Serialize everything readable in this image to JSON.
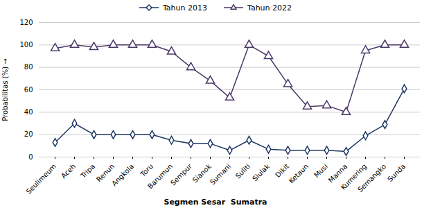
{
  "chart_data": {
    "type": "line",
    "xlabel": "Segmen Sesar  Sumatra",
    "ylabel": "Probabilitas (%)",
    "categories": [
      "Seulimeum",
      "Aceh",
      "Tripa",
      "Renun",
      "Angkola",
      "Toru",
      "Barumun",
      "Sempur",
      "Sianok",
      "Sumani",
      "Suliti",
      "Siulak",
      "Dikit",
      "Ketaun",
      "Musi",
      "Manna",
      "Kumering",
      "Semangko",
      "Sunda"
    ],
    "series": [
      {
        "name": "Tahun 2013",
        "color": "#1F3864",
        "marker": "diamond",
        "values": [
          13,
          30,
          20,
          20,
          20,
          20,
          15,
          12,
          12,
          6,
          15,
          7,
          6,
          6,
          6,
          5,
          19,
          29,
          61
        ]
      },
      {
        "name": "Tahun 2022",
        "color": "#4B3869",
        "marker": "triangle",
        "values": [
          97,
          100,
          98,
          100,
          100,
          100,
          94,
          80,
          68,
          53,
          100,
          90,
          65,
          45,
          46,
          40,
          95,
          100,
          100
        ]
      }
    ],
    "ylim": [
      0,
      120
    ],
    "yticks": [
      0,
      20,
      40,
      60,
      80,
      100,
      120
    ],
    "grid": true,
    "legend": "top"
  }
}
